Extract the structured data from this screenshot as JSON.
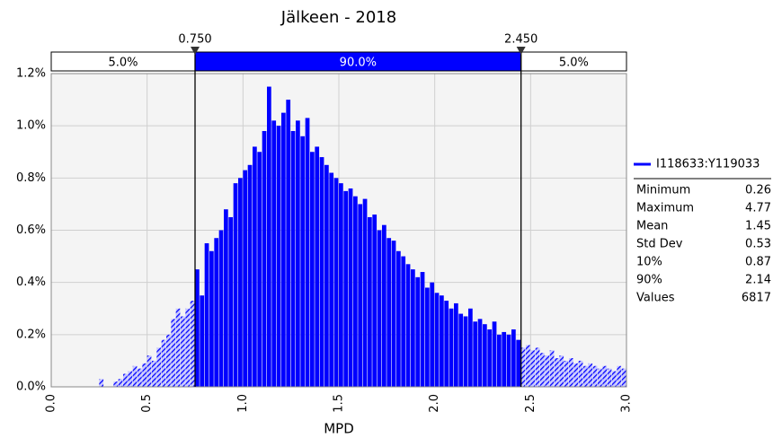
{
  "chart_data": {
    "type": "histogram",
    "title": "Jälkeen - 2018",
    "x_label": "MPD",
    "bins": [
      0.25,
      0.275,
      0.3,
      0.325,
      0.35,
      0.375,
      0.4,
      0.425,
      0.45,
      0.475,
      0.5,
      0.525,
      0.55,
      0.575,
      0.6,
      0.625,
      0.65,
      0.675,
      0.7,
      0.725,
      0.75,
      0.775,
      0.8,
      0.825,
      0.85,
      0.875,
      0.9,
      0.925,
      0.95,
      0.975,
      1.0,
      1.025,
      1.05,
      1.075,
      1.1,
      1.125,
      1.15,
      1.175,
      1.2,
      1.225,
      1.25,
      1.275,
      1.3,
      1.325,
      1.35,
      1.375,
      1.4,
      1.425,
      1.45,
      1.475,
      1.5,
      1.525,
      1.55,
      1.575,
      1.6,
      1.625,
      1.65,
      1.675,
      1.7,
      1.725,
      1.75,
      1.775,
      1.8,
      1.825,
      1.85,
      1.875,
      1.9,
      1.925,
      1.95,
      1.975,
      2.0,
      2.025,
      2.05,
      2.075,
      2.1,
      2.125,
      2.15,
      2.175,
      2.2,
      2.225,
      2.25,
      2.275,
      2.3,
      2.325,
      2.35,
      2.375,
      2.4,
      2.425,
      2.45,
      2.475,
      2.5,
      2.525,
      2.55,
      2.575,
      2.6,
      2.625,
      2.65,
      2.675,
      2.7,
      2.725,
      2.75,
      2.775,
      2.8,
      2.825,
      2.85,
      2.875,
      2.9,
      2.925,
      2.95,
      2.975,
      3.0
    ],
    "series": [
      {
        "name": "I118633:Y119033",
        "color": "#0000ff",
        "values": [
          0.03,
          0,
          0,
          0.02,
          0.03,
          0.05,
          0.06,
          0.08,
          0.07,
          0.09,
          0.12,
          0.1,
          0.15,
          0.18,
          0.2,
          0.26,
          0.3,
          0.27,
          0.3,
          0.33,
          0.45,
          0.35,
          0.55,
          0.52,
          0.57,
          0.6,
          0.68,
          0.65,
          0.78,
          0.8,
          0.83,
          0.85,
          0.92,
          0.9,
          0.98,
          1.15,
          1.02,
          1.0,
          1.05,
          1.1,
          0.98,
          1.02,
          0.96,
          1.03,
          0.9,
          0.92,
          0.88,
          0.85,
          0.82,
          0.8,
          0.78,
          0.75,
          0.76,
          0.73,
          0.7,
          0.72,
          0.65,
          0.66,
          0.6,
          0.62,
          0.57,
          0.56,
          0.52,
          0.5,
          0.47,
          0.45,
          0.42,
          0.44,
          0.38,
          0.4,
          0.36,
          0.35,
          0.33,
          0.3,
          0.32,
          0.28,
          0.27,
          0.3,
          0.25,
          0.26,
          0.24,
          0.22,
          0.25,
          0.2,
          0.21,
          0.2,
          0.22,
          0.18,
          0.15,
          0.16,
          0.14,
          0.15,
          0.13,
          0.12,
          0.14,
          0.11,
          0.12,
          0.1,
          0.11,
          0.09,
          0.1,
          0.08,
          0.09,
          0.08,
          0.07,
          0.08,
          0.07,
          0.06,
          0.08,
          0.07
        ]
      }
    ],
    "xlim": [
      0,
      3.0
    ],
    "xticks": [
      {
        "value": 0,
        "label": "0.0"
      },
      0.5,
      {
        "value": 1,
        "label": "1.0"
      },
      1.5,
      {
        "value": 2,
        "label": "2.0"
      },
      2.5,
      {
        "value": 3,
        "label": "3.0"
      }
    ],
    "ylim": [
      0,
      1.2
    ],
    "yticks": [
      {
        "value": 0,
        "label": "0.0%"
      },
      {
        "value": 0.2,
        "label": "0.2%"
      },
      {
        "value": 0.4,
        "label": "0.4%"
      },
      {
        "value": 0.6,
        "label": "0.6%"
      },
      {
        "value": 0.8,
        "label": "0.8%"
      },
      {
        "value": 1.0,
        "label": "1.0%"
      },
      {
        "value": 1.2,
        "label": "1.2%"
      }
    ],
    "grid": true,
    "delimiters": [
      {
        "value": 0.75,
        "label": "0.750"
      },
      {
        "value": 2.45,
        "label": "2.450"
      }
    ],
    "band_labels": [
      "5.0%",
      "90.0%",
      "5.0%"
    ],
    "stats": [
      {
        "label": "Minimum",
        "value": 0.26
      },
      {
        "label": "Maximum",
        "value": 4.77
      },
      {
        "label": "Mean",
        "value": 1.45
      },
      {
        "label": "Std Dev",
        "value": 0.53
      },
      {
        "label": "10%",
        "value": 0.87
      },
      {
        "label": "90%",
        "value": 2.14
      },
      {
        "label": "Values",
        "value": 6817
      }
    ]
  }
}
